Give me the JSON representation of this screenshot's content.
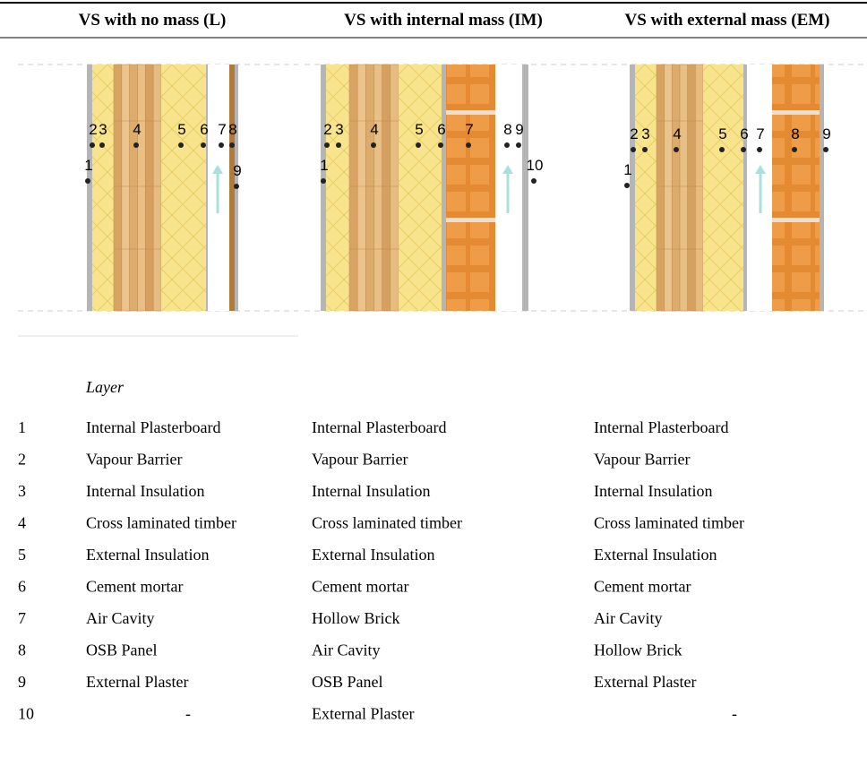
{
  "header": {
    "columns": [
      "VS with no mass  (L)",
      "VS with internal mass (IM)",
      "VS with external mass (EM)"
    ]
  },
  "diagrams": [
    {
      "labels": [
        "1",
        "2",
        "3",
        "4",
        "5",
        "6",
        "7",
        "8",
        "9"
      ]
    },
    {
      "labels": [
        "1",
        "2",
        "3",
        "4",
        "5",
        "6",
        "7",
        "8",
        "9",
        "10"
      ]
    },
    {
      "labels": [
        "1",
        "2",
        "3",
        "4",
        "5",
        "6",
        "7",
        "8",
        "9"
      ]
    }
  ],
  "table": {
    "layer_header": "Layer",
    "rows": [
      [
        "1",
        "Internal Plasterboard",
        "Internal Plasterboard",
        "Internal Plasterboard"
      ],
      [
        "2",
        "Vapour Barrier",
        "Vapour Barrier",
        "Vapour Barrier"
      ],
      [
        "3",
        "Internal Insulation",
        "Internal Insulation",
        "Internal Insulation"
      ],
      [
        "4",
        "Cross laminated timber",
        "Cross laminated timber",
        "Cross laminated timber"
      ],
      [
        "5",
        "External Insulation",
        "External Insulation",
        "External Insulation"
      ],
      [
        "6",
        "Cement mortar",
        "Cement mortar",
        "Cement mortar"
      ],
      [
        "7",
        "Air Cavity",
        "Hollow Brick",
        "Air Cavity"
      ],
      [
        "8",
        "OSB  Panel",
        "Air Cavity",
        "Hollow Brick"
      ],
      [
        "9",
        "External Plaster",
        "OSB  Panel",
        "External Plaster"
      ],
      [
        "10",
        "-",
        "External Plaster",
        "-"
      ]
    ]
  }
}
